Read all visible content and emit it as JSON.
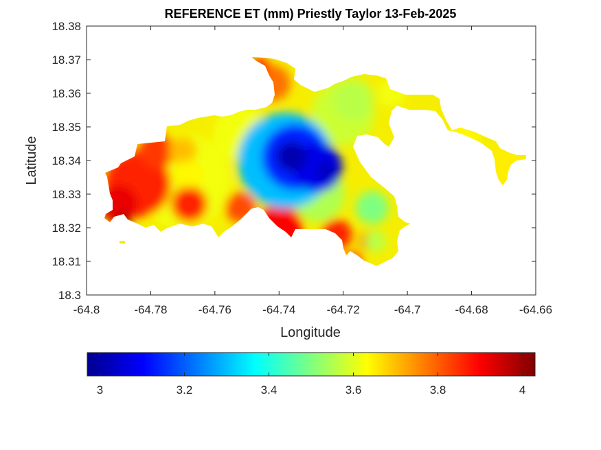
{
  "chart_data": {
    "type": "heatmap",
    "title": "REFERENCE ET (mm) Priestly Taylor 13-Feb-2025",
    "xlabel": "Longitude",
    "ylabel": "Latitude",
    "xlim": [
      -64.8,
      -64.66
    ],
    "ylim": [
      18.3,
      18.38
    ],
    "x_ticks": [
      -64.8,
      -64.78,
      -64.76,
      -64.74,
      -64.72,
      -64.7,
      -64.68,
      -64.66
    ],
    "x_tick_labels": [
      "-64.8",
      "-64.78",
      "-64.76",
      "-64.74",
      "-64.72",
      "-64.7",
      "-64.68",
      "-64.66"
    ],
    "y_ticks": [
      18.3,
      18.31,
      18.32,
      18.33,
      18.34,
      18.35,
      18.36,
      18.37,
      18.38
    ],
    "y_tick_labels": [
      "18.3",
      "18.31",
      "18.32",
      "18.33",
      "18.34",
      "18.35",
      "18.36",
      "18.37",
      "18.38"
    ],
    "grid": false,
    "colormap": "jet",
    "colorbar": {
      "location": "bottom",
      "range": [
        2.97,
        4.03
      ],
      "ticks": [
        3,
        3.2,
        3.4,
        3.6,
        3.8,
        4
      ],
      "tick_labels": [
        "3",
        "3.2",
        "3.4",
        "3.6",
        "3.8",
        "4"
      ]
    },
    "value_features": [
      {
        "name": "minimum",
        "lon": -64.735,
        "lat": 18.3405,
        "value": 3.0
      },
      {
        "name": "secondary-minimum",
        "lon": -64.724,
        "lat": 18.3365,
        "value": 3.05
      },
      {
        "name": "maximum",
        "lon": -64.788,
        "lat": 18.322,
        "value": 4.0
      },
      {
        "name": "west-high",
        "lon": -64.785,
        "lat": 18.333,
        "value": 3.88
      },
      {
        "name": "south-coast-high",
        "lon": -64.74,
        "lat": 18.32,
        "value": 3.9
      },
      {
        "name": "north-arm-high",
        "lon": -64.742,
        "lat": 18.364,
        "value": 3.78
      },
      {
        "name": "east-tail",
        "lon": -64.67,
        "lat": 18.337,
        "value": 3.64
      }
    ]
  }
}
